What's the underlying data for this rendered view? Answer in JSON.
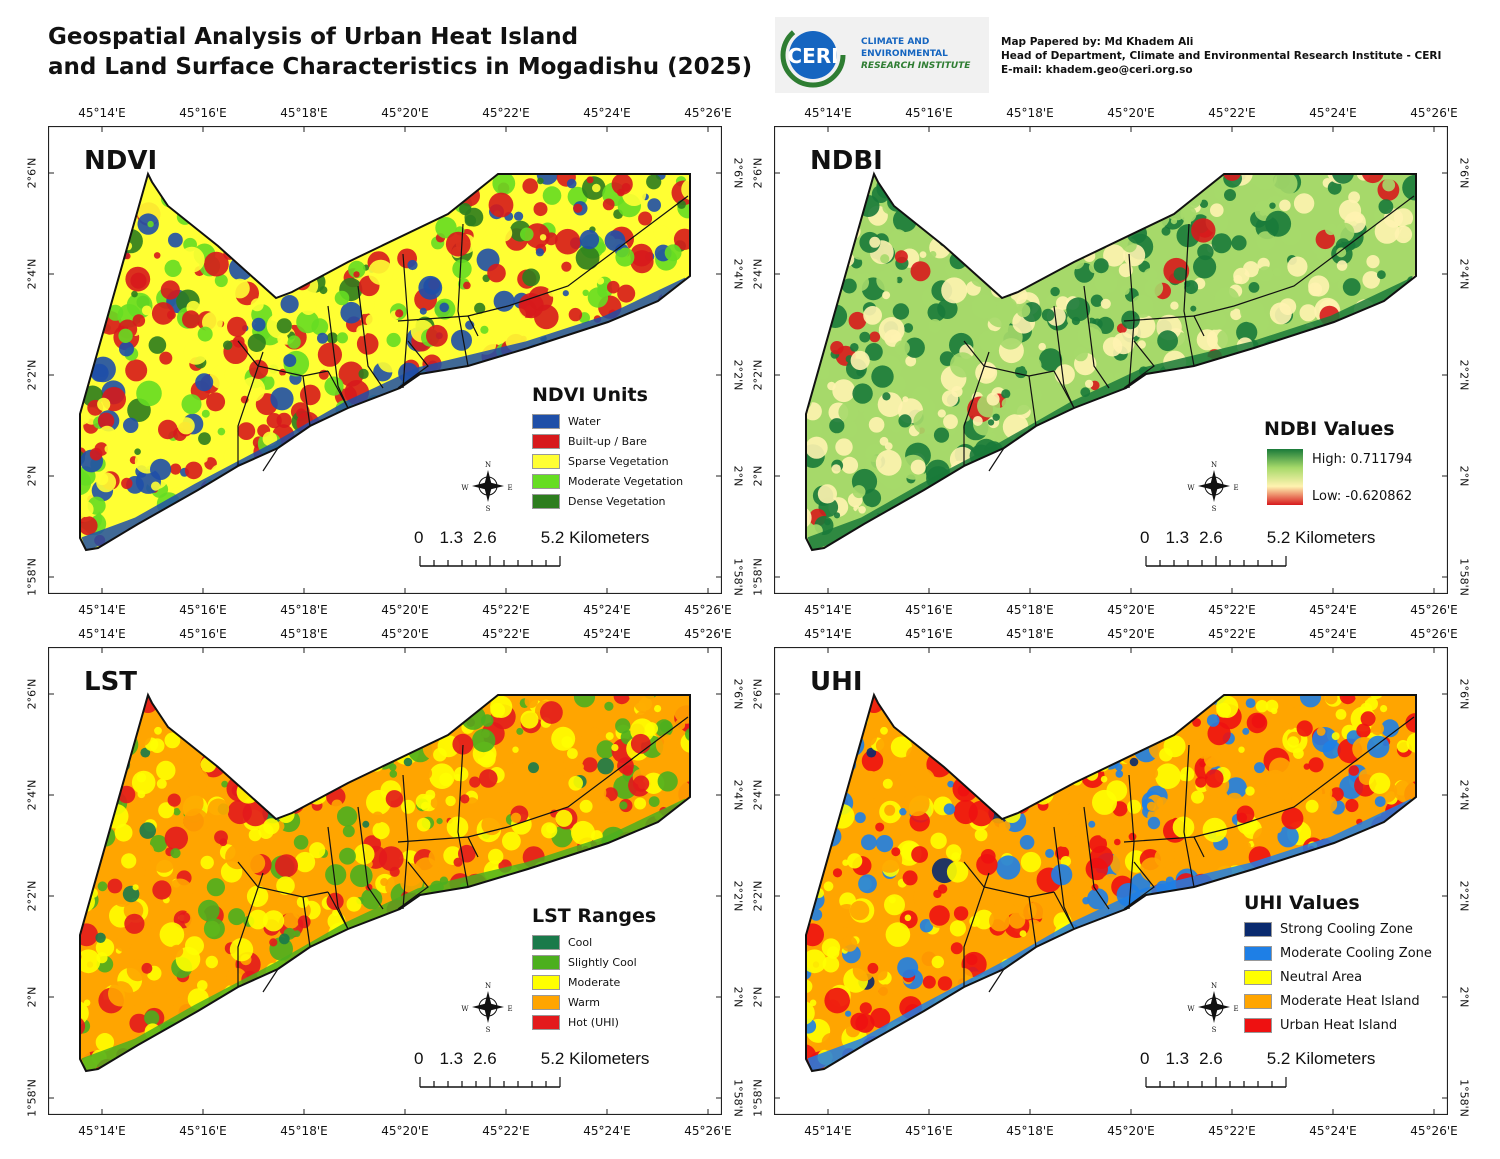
{
  "title_line1": "Geospatial Analysis of Urban Heat Island",
  "title_line2": "and Land Surface Characteristics in Mogadishu (2025)",
  "logo": {
    "acronym": "CERI",
    "line1": "CLIMATE AND",
    "line2": "ENVIRONMENTAL",
    "line3": "RESEARCH INSTITUTE",
    "green": "#2e7d32",
    "blue": "#1565c0"
  },
  "credits": {
    "line1": "Map Papered by: Md Khadem Ali",
    "line2": "Head of Department, Climate and Environmental Research Institute - CERI",
    "line3": "E-mail: khadem.geo@ceri.org.so"
  },
  "lon_labels": [
    "45°14'E",
    "45°16'E",
    "45°18'E",
    "45°20'E",
    "45°22'E",
    "45°24'E",
    "45°26'E"
  ],
  "lat_labels": [
    "2°6'N",
    "2°4'N",
    "2°2'N",
    "2°N",
    "1°58'N"
  ],
  "scale": {
    "n0": "0",
    "n1": "1.3",
    "n2": "2.6",
    "n3": "5.2 Kilometers"
  },
  "compass": {
    "n": "N",
    "s": "S",
    "e": "E",
    "w": "W"
  },
  "panels": {
    "ndvi": {
      "title": "NDVI",
      "legend_title": "NDVI Units",
      "classes": [
        {
          "label": "Water",
          "color": "#1f4fa8"
        },
        {
          "label": "Built-up / Bare",
          "color": "#d7191c"
        },
        {
          "label": "Sparse Vegetation",
          "color": "#ffff33"
        },
        {
          "label": "Moderate Vegetation",
          "color": "#66dd22"
        },
        {
          "label": "Dense Vegetation",
          "color": "#2d7d1e"
        }
      ]
    },
    "ndbi": {
      "title": "NDBI",
      "legend_title": "NDBI Values",
      "high_label": "High: 0.711794",
      "low_label": "Low: -0.620862",
      "ramp": [
        "#1a7a3a",
        "#a6d96a",
        "#fff3b0",
        "#d7191c"
      ]
    },
    "lst": {
      "title": "LST",
      "legend_title": "LST Ranges",
      "classes": [
        {
          "label": "Cool",
          "color": "#1a7a4a"
        },
        {
          "label": "Slightly Cool",
          "color": "#4caf1e"
        },
        {
          "label": "Moderate",
          "color": "#ffff00"
        },
        {
          "label": "Warm",
          "color": "#ffa500"
        },
        {
          "label": "Hot (UHI)",
          "color": "#e31a1c"
        }
      ]
    },
    "uhi": {
      "title": "UHI",
      "legend_title": "UHI Values",
      "classes": [
        {
          "label": "Strong Cooling Zone",
          "color": "#0a2a6e"
        },
        {
          "label": "Moderate Cooling Zone",
          "color": "#1e7fe6"
        },
        {
          "label": "Neutral Area",
          "color": "#ffff00"
        },
        {
          "label": "Moderate Heat Island",
          "color": "#ffa500"
        },
        {
          "label": "Urban Heat Island",
          "color": "#ee1111"
        }
      ]
    }
  }
}
